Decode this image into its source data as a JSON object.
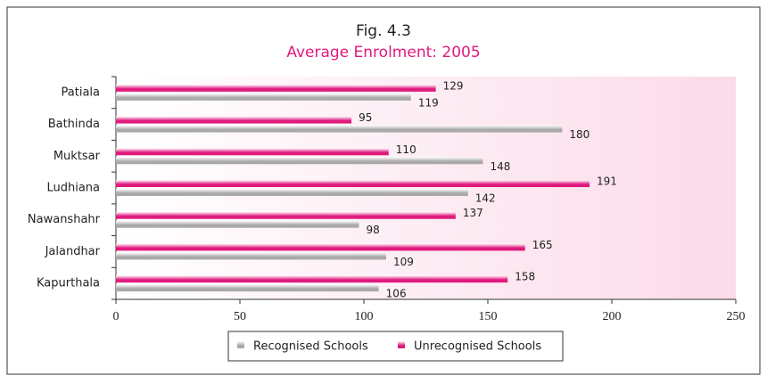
{
  "chart_data": {
    "type": "hbar",
    "title": "Fig. 4.3",
    "subtitle": "Average Enrolment: 2005",
    "categories": [
      "Patiala",
      "Bathinda",
      "Muktsar",
      "Ludhiana",
      "Nawanshahr",
      "Jalandhar",
      "Kapurthala"
    ],
    "series": [
      {
        "name": "Recognised Schools",
        "color": "#a9a9a9",
        "values": [
          119,
          180,
          148,
          142,
          98,
          109,
          106
        ]
      },
      {
        "name": "Unrecognised Schools",
        "color": "#e0197d",
        "values": [
          129,
          95,
          110,
          191,
          137,
          165,
          158
        ]
      }
    ],
    "xlim": [
      0,
      250
    ],
    "xticks": [
      0,
      50,
      100,
      150,
      200,
      250
    ],
    "legend": "bottom"
  }
}
